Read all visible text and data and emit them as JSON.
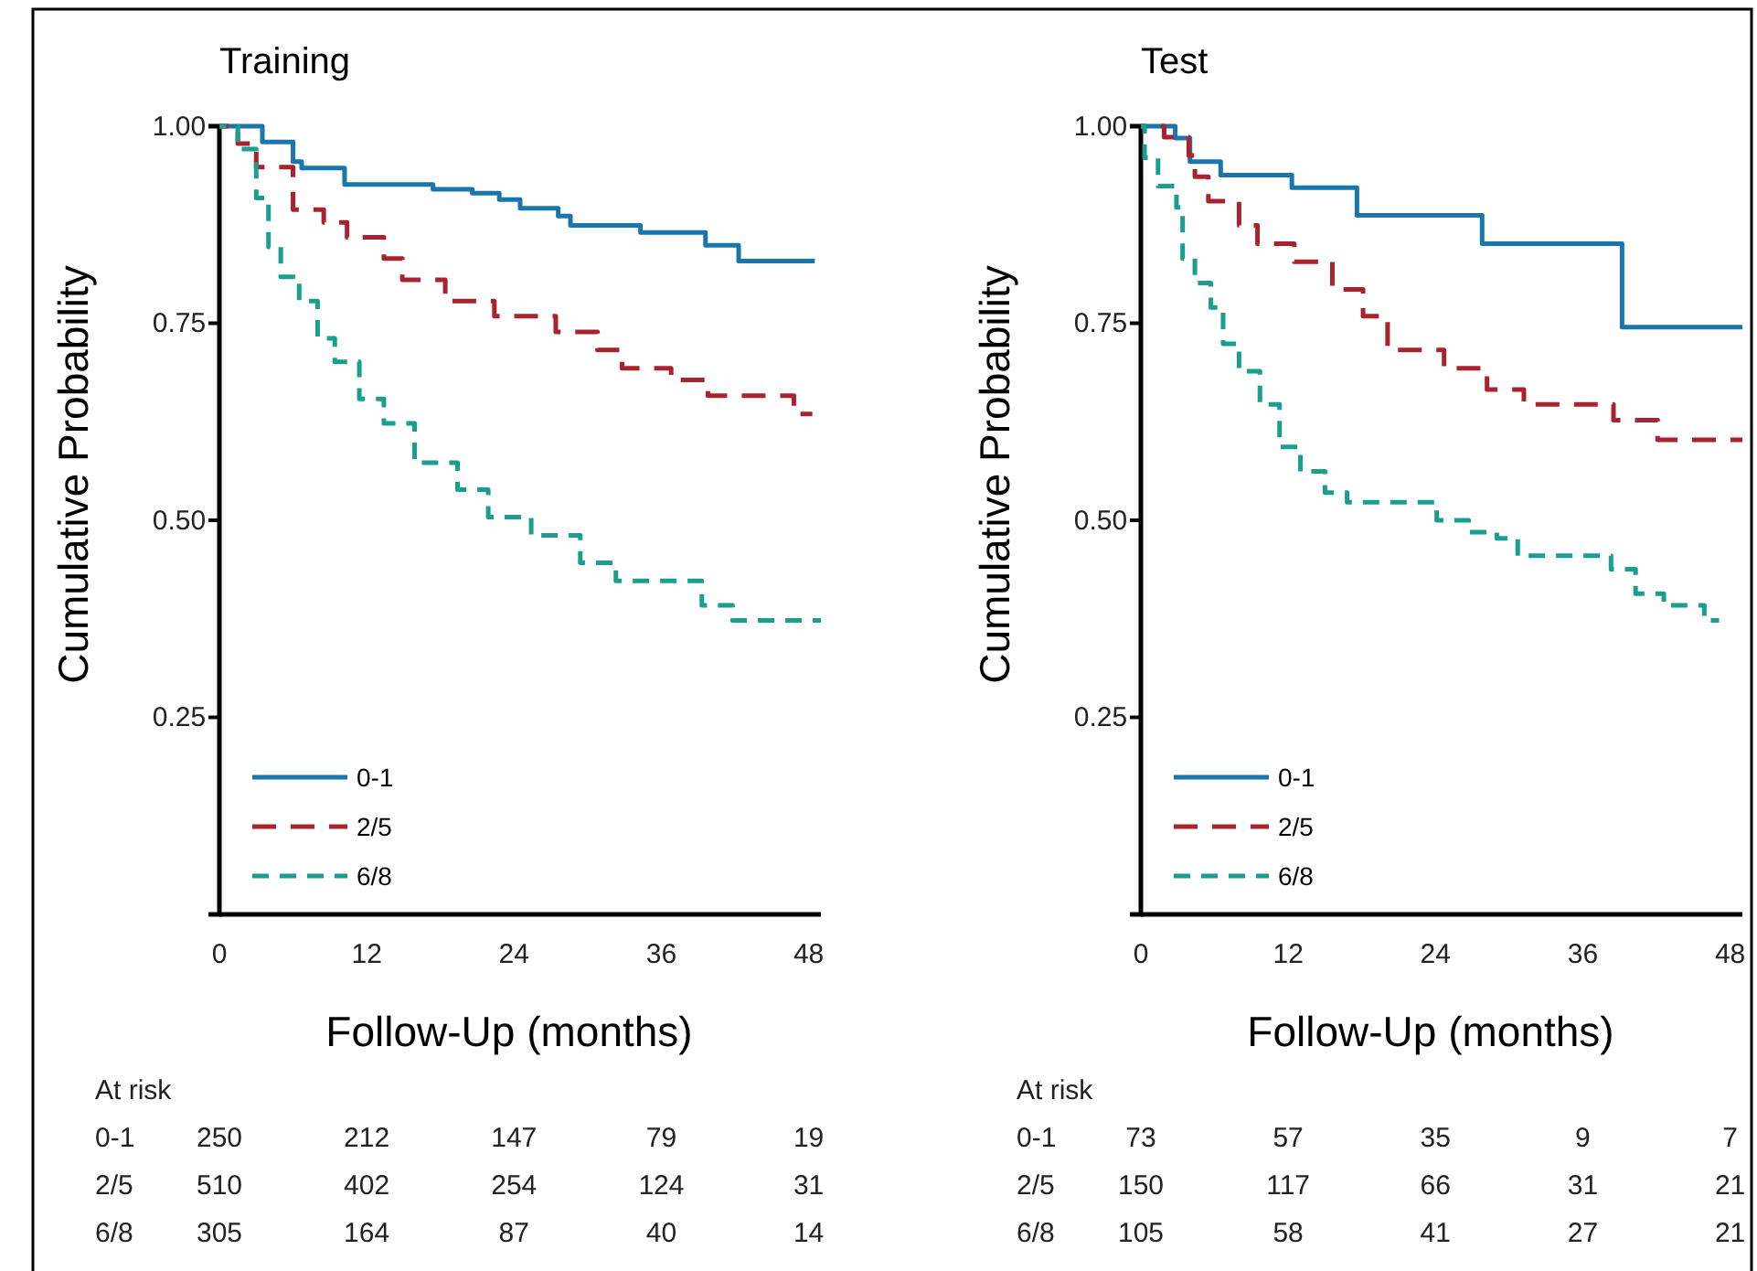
{
  "chart_data": [
    {
      "type": "step",
      "title": "Training",
      "xlabel": "Follow-Up (months)",
      "ylabel": "Cumulative Probability",
      "xlim": [
        0,
        49
      ],
      "xticks": [
        0,
        12,
        24,
        36,
        48
      ],
      "ylim": [
        0,
        1
      ],
      "yticks": [
        {
          "value": 0.25,
          "label": "0.25"
        },
        {
          "value": 0.5,
          "label": "0.50"
        },
        {
          "value": 0.75,
          "label": "0.75"
        },
        {
          "value": 1,
          "label": "1.00"
        }
      ],
      "legend": "bottom left",
      "grid": false,
      "series": [
        {
          "name": "0-1",
          "color": "#1a75ad",
          "line_style": "solid",
          "x": [
            0,
            3.5,
            6.0,
            6.7,
            10.2,
            17.4,
            20.6,
            22.8,
            24.5,
            27.6,
            28.6,
            34.3,
            39.6,
            42.3,
            48.5
          ],
          "values": [
            1,
            0.98,
            0.955,
            0.947,
            0.926,
            0.92,
            0.915,
            0.907,
            0.896,
            0.886,
            0.874,
            0.865,
            0.849,
            0.829,
            0.829
          ]
        },
        {
          "name": "2/5",
          "color": "#a8232e",
          "line_style": "dashed",
          "x": [
            0,
            1.5,
            3.0,
            6.0,
            8.5,
            10.4,
            13.4,
            14.9,
            18.4,
            22.4,
            27.4,
            30.8,
            32.8,
            36.8,
            39.8,
            46.8,
            48.3
          ],
          "values": [
            1,
            0.978,
            0.948,
            0.894,
            0.878,
            0.859,
            0.832,
            0.805,
            0.778,
            0.759,
            0.739,
            0.716,
            0.693,
            0.678,
            0.658,
            0.635,
            0.635
          ]
        },
        {
          "name": "6/8",
          "color": "#1a9e8f",
          "line_style": "dashed",
          "x": [
            0,
            1.5,
            3.0,
            4.0,
            5.0,
            6.5,
            8.0,
            9.4,
            11.4,
            13.4,
            15.9,
            19.4,
            21.9,
            25.4,
            29.4,
            32.3,
            39.3,
            41.8,
            49.0
          ],
          "values": [
            1,
            0.971,
            0.909,
            0.847,
            0.809,
            0.778,
            0.731,
            0.701,
            0.654,
            0.623,
            0.573,
            0.539,
            0.504,
            0.481,
            0.446,
            0.423,
            0.392,
            0.373,
            0.373
          ]
        }
      ],
      "annotations": [
        "At risk",
        "0-1",
        "250",
        "212",
        "147",
        "79",
        "19",
        "2/5",
        "510",
        "402",
        "254",
        "124",
        "31",
        "6/8",
        "305",
        "164",
        "87",
        "40",
        "14"
      ]
    },
    {
      "type": "step",
      "title": "Test",
      "xlabel": "Follow-Up (months)",
      "ylabel": "Cumulative Probability",
      "xlim": [
        0,
        49
      ],
      "xticks": [
        0,
        12,
        24,
        36,
        48
      ],
      "ylim": [
        0,
        1
      ],
      "yticks": [
        {
          "value": 0.25,
          "label": "0.25"
        },
        {
          "value": 0.5,
          "label": "0.50"
        },
        {
          "value": 0.75,
          "label": "0.75"
        },
        {
          "value": 1,
          "label": "1.00"
        }
      ],
      "legend": "bottom left",
      "grid": false,
      "series": [
        {
          "name": "0-1",
          "color": "#1a75ad",
          "line_style": "solid",
          "x": [
            0,
            2.8,
            4.0,
            6.5,
            12.3,
            17.6,
            27.8,
            39.2,
            49.0
          ],
          "values": [
            1,
            0.985,
            0.955,
            0.938,
            0.922,
            0.887,
            0.851,
            0.745,
            0.745
          ]
        },
        {
          "name": "2/5",
          "color": "#a8232e",
          "line_style": "dashed",
          "x": [
            0,
            1.9,
            3.9,
            4.4,
            5.5,
            8.0,
            9.5,
            12.5,
            15.6,
            18.1,
            20.1,
            24.7,
            28.2,
            31.2,
            38.5,
            42.1,
            49.0
          ],
          "values": [
            1,
            0.986,
            0.963,
            0.936,
            0.905,
            0.874,
            0.851,
            0.828,
            0.793,
            0.759,
            0.716,
            0.693,
            0.666,
            0.647,
            0.627,
            0.602,
            0.602
          ]
        },
        {
          "name": "6/8",
          "color": "#1a9e8f",
          "line_style": "dashed",
          "x": [
            0,
            0.3,
            1.4,
            2.9,
            3.4,
            4.4,
            5.7,
            6.7,
            8.0,
            9.7,
            11.3,
            13.0,
            15.0,
            16.8,
            24.1,
            26.7,
            29.0,
            30.7,
            38.3,
            40.3,
            42.6,
            45.9,
            47.1
          ],
          "values": [
            1,
            0.96,
            0.924,
            0.897,
            0.832,
            0.801,
            0.77,
            0.724,
            0.689,
            0.647,
            0.593,
            0.562,
            0.535,
            0.523,
            0.5,
            0.485,
            0.477,
            0.455,
            0.438,
            0.407,
            0.392,
            0.373,
            0.373
          ]
        }
      ],
      "annotations": [
        "At risk",
        "0-1",
        "73",
        "57",
        "35",
        "9",
        "7",
        "2/5",
        "150",
        "117",
        "66",
        "31",
        "21",
        "6/8",
        "105",
        "58",
        "41",
        "27",
        "21"
      ]
    }
  ]
}
